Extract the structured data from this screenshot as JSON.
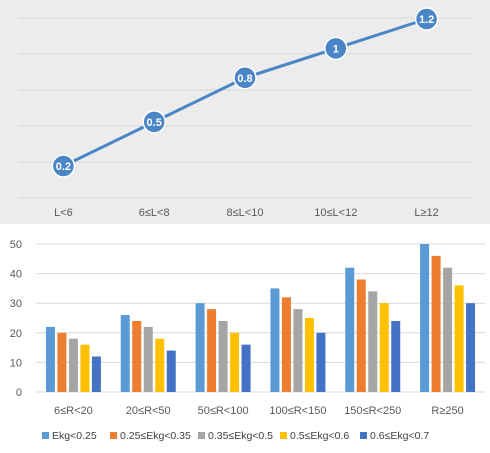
{
  "colors": {
    "line": "#4a86c5",
    "panel1_bg": "#ececec",
    "grid": "#d9d9d9",
    "axis_text": "#595959"
  },
  "chart_data": [
    {
      "type": "line",
      "categories": [
        "L<6",
        "6≤L<8",
        "8≤L<10",
        "10≤L<12",
        "L≥12"
      ],
      "series": [
        {
          "values": [
            0.2,
            0.5,
            0.8,
            1,
            1.2
          ],
          "data_labels": [
            "0.2",
            "0.5",
            "0.8",
            "1",
            "1.2"
          ],
          "color": "#4a86c5"
        }
      ],
      "grid": true,
      "marker": "circle-with-label"
    },
    {
      "type": "bar",
      "categories": [
        "6≤R<20",
        "20≤R<50",
        "50≤R<100",
        "100≤R<150",
        "150≤R<250",
        "R≥250"
      ],
      "series": [
        {
          "name": "Ekg<0.25",
          "color": "#5b9bd5",
          "values": [
            22,
            26,
            30,
            35,
            42,
            50
          ]
        },
        {
          "name": "0.25≤Ekg<0.35",
          "color": "#ed7d31",
          "values": [
            20,
            24,
            28,
            32,
            38,
            46
          ]
        },
        {
          "name": "0.35≤Ekg<0.5",
          "color": "#a5a5a5",
          "values": [
            18,
            22,
            24,
            28,
            34,
            42
          ]
        },
        {
          "name": "0.5≤Ekg<0.6",
          "color": "#ffc000",
          "values": [
            16,
            18,
            20,
            25,
            30,
            36
          ]
        },
        {
          "name": "0.6≤Ekg<0.7",
          "color": "#4472c4",
          "values": [
            12,
            14,
            16,
            20,
            24,
            30
          ]
        }
      ],
      "ylim": [
        0,
        50
      ],
      "yticks": [
        0,
        10,
        20,
        30,
        40,
        50
      ],
      "grid": true,
      "legend": "bottom"
    }
  ]
}
